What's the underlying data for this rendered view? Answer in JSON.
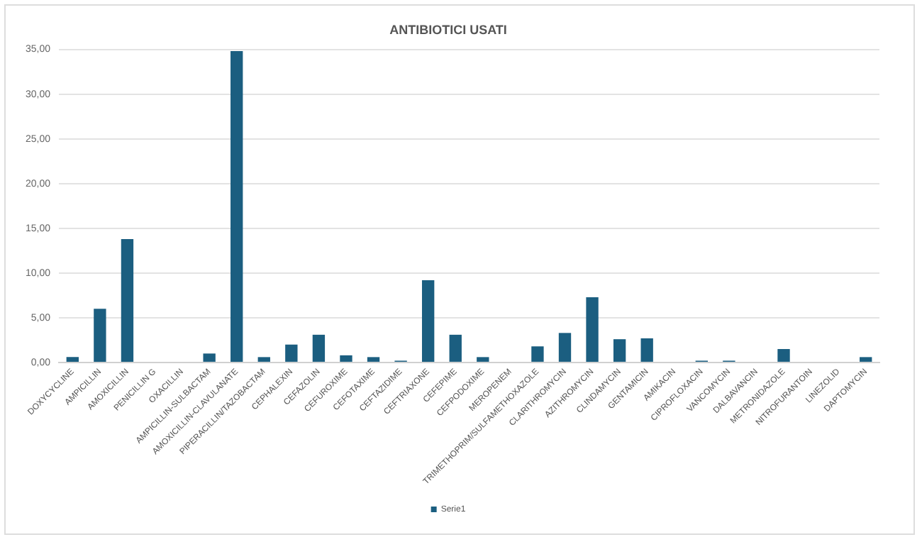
{
  "chart_data": {
    "type": "bar",
    "title": "ANTIBIOTICI USATI",
    "categories": [
      "DOXYCYCLINE",
      "AMPICILLIN",
      "AMOXICILLIN",
      "PENICILLIN G",
      "OXACILLIN",
      "AMPICILLIN-SULBACTAM",
      "AMOXICILLIN-CLAVULANATE",
      "PIPERACILLIN/TAZOBACTAM",
      "CEPHALEXIN",
      "CEFAZOLIN",
      "CEFUROXIME",
      "CEFOTAXIME",
      "CEFTAZIDIME",
      "CEFTRIAXONE",
      "CEFEPIME",
      "CEFPODOXIME",
      "MEROPENEM",
      "TRIMETHOPRIM/SULFAMETHOXAZOLE",
      "CLARITHROMYCIN",
      "AZITHROMYCIN",
      "CLINDAMYCIN",
      "GENTAMICIN",
      "AMIKACIN",
      "CIPROFLOXACIN",
      "VANCOMYCIN",
      "DALBAVANCIN",
      "METRONIDAZOLE",
      "NITROFURANTOIN",
      "LINEZOLID",
      "DAPTOMYCIN"
    ],
    "series": [
      {
        "name": "Serie1",
        "color": "#1b5e80",
        "values": [
          0.6,
          6.0,
          13.8,
          0,
          0,
          1.0,
          34.8,
          0.6,
          2.0,
          3.1,
          0.8,
          0.6,
          0.2,
          9.2,
          3.1,
          0.6,
          0,
          1.8,
          3.3,
          7.3,
          2.6,
          2.7,
          0,
          0.2,
          0.2,
          0,
          1.5,
          0,
          0,
          0.6
        ]
      }
    ],
    "ylim": [
      0,
      35
    ],
    "yticks": [
      {
        "value": 0,
        "label": "0,00"
      },
      {
        "value": 5,
        "label": "5,00"
      },
      {
        "value": 10,
        "label": "10,00"
      },
      {
        "value": 15,
        "label": "15,00"
      },
      {
        "value": 20,
        "label": "20,00"
      },
      {
        "value": 25,
        "label": "25,00"
      },
      {
        "value": 30,
        "label": "30,00"
      },
      {
        "value": 35,
        "label": "35,00"
      }
    ],
    "grid": "y",
    "legend": "bottom"
  }
}
